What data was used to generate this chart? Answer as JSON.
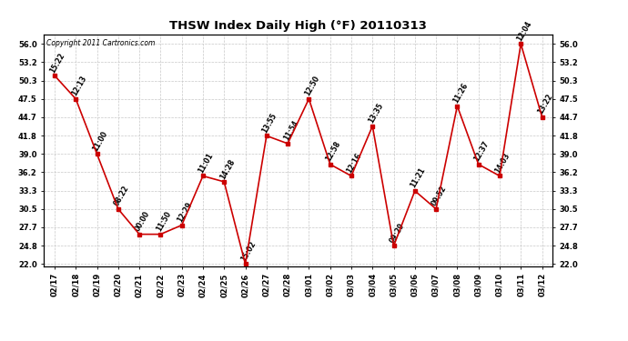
{
  "title": "THSW Index Daily High (°F) 20110313",
  "copyright": "Copyright 2011 Cartronics.com",
  "x_labels": [
    "02/17",
    "02/18",
    "02/19",
    "02/20",
    "02/21",
    "02/22",
    "02/23",
    "02/24",
    "02/25",
    "02/26",
    "02/27",
    "02/28",
    "03/01",
    "03/02",
    "03/03",
    "03/04",
    "03/05",
    "03/06",
    "03/07",
    "03/08",
    "03/09",
    "03/10",
    "03/11",
    "03/12"
  ],
  "y_values": [
    51.1,
    47.5,
    39.0,
    30.5,
    26.6,
    26.6,
    28.0,
    35.6,
    34.7,
    22.0,
    41.8,
    40.6,
    47.5,
    37.4,
    35.6,
    43.3,
    24.8,
    33.3,
    30.5,
    46.4,
    37.4,
    35.6,
    56.0,
    44.7
  ],
  "point_labels": [
    "15:22",
    "12:13",
    "11:00",
    "08:22",
    "00:00",
    "11:50",
    "12:29",
    "11:01",
    "14:28",
    "15:02",
    "13:55",
    "11:54",
    "12:50",
    "12:58",
    "12:16",
    "13:35",
    "09:29",
    "11:21",
    "09:52",
    "11:26",
    "12:37",
    "14:03",
    "12:04",
    "13:22"
  ],
  "y_ticks": [
    22.0,
    24.8,
    27.7,
    30.5,
    33.3,
    36.2,
    39.0,
    41.8,
    44.7,
    47.5,
    50.3,
    53.2,
    56.0
  ],
  "y_min": 22.0,
  "y_max": 56.0,
  "line_color": "#cc0000",
  "marker_color": "#cc0000",
  "bg_color": "#ffffff",
  "plot_bg_color": "#ffffff",
  "grid_color": "#c8c8c8",
  "title_fontsize": 9.5,
  "label_fontsize": 6.0,
  "copyright_fontsize": 5.5,
  "point_label_fontsize": 5.5
}
